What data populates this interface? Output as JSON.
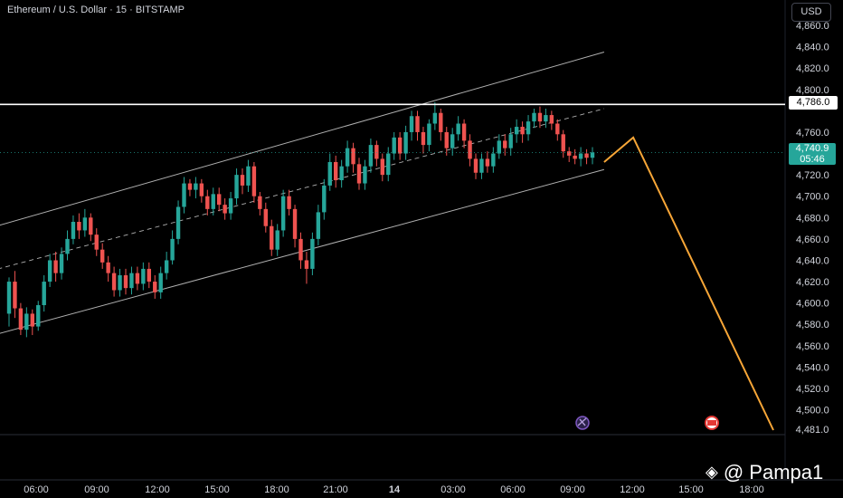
{
  "header": {
    "symbol_title": "Ethereum / U.S. Dollar · 15 · BITSTAMP",
    "currency_button": "USD"
  },
  "colors": {
    "up": "#26a69a",
    "down": "#ef5350",
    "projection": "#f7a637",
    "channel": "#cfcfcf",
    "resistance": "#ffffff",
    "current_price_tag": "#26a69a"
  },
  "chart_data": {
    "type": "candlestick",
    "price_axis_labels": [
      "4,860.0",
      "4,840.0",
      "4,820.0",
      "4,800.0",
      "4,760.0",
      "4,720.0",
      "4,700.0",
      "4,680.0",
      "4,660.0",
      "4,640.0",
      "4,620.0",
      "4,600.0",
      "4,580.0",
      "4,560.0",
      "4,540.0",
      "4,520.0",
      "4,500.0"
    ],
    "time_axis_labels": [
      "06:00",
      "09:00",
      "12:00",
      "15:00",
      "18:00",
      "21:00",
      "14",
      "03:00",
      "06:00",
      "09:00",
      "12:00",
      "15:00",
      "18:00"
    ],
    "resistance_level": {
      "value": 4786.0,
      "label": "4,786.0"
    },
    "current_price": {
      "value": 4740.9,
      "label": "4,740.9",
      "countdown": "05:46"
    },
    "bottom_level": {
      "value": 4481.0,
      "label": "4,481.0"
    },
    "ylim": [
      4481,
      4866
    ],
    "channel": {
      "upper": [
        {
          "t": -6,
          "p": 4666
        },
        {
          "t": 102,
          "p": 4835
        }
      ],
      "middle": [
        {
          "t": -6,
          "p": 4626
        },
        {
          "t": 102,
          "p": 4782
        }
      ],
      "lower": [
        {
          "t": -6,
          "p": 4565
        },
        {
          "t": 102,
          "p": 4725
        }
      ]
    },
    "projection": [
      {
        "t": 102,
        "p": 4732
      },
      {
        "t": 107,
        "p": 4755
      },
      {
        "t": 131,
        "p": 4481
      }
    ],
    "candles": [
      [
        4590,
        4620,
        4578,
        4624
      ],
      [
        4620,
        4595,
        4586,
        4630
      ],
      [
        4595,
        4575,
        4570,
        4600
      ],
      [
        4575,
        4590,
        4568,
        4596
      ],
      [
        4590,
        4578,
        4570,
        4594
      ],
      [
        4578,
        4598,
        4574,
        4602
      ],
      [
        4598,
        4620,
        4592,
        4626
      ],
      [
        4620,
        4640,
        4615,
        4646
      ],
      [
        4640,
        4628,
        4620,
        4648
      ],
      [
        4628,
        4646,
        4622,
        4652
      ],
      [
        4646,
        4660,
        4640,
        4668
      ],
      [
        4660,
        4676,
        4655,
        4682
      ],
      [
        4676,
        4668,
        4660,
        4684
      ],
      [
        4668,
        4680,
        4662,
        4688
      ],
      [
        4680,
        4664,
        4658,
        4684
      ],
      [
        4664,
        4650,
        4644,
        4670
      ],
      [
        4650,
        4638,
        4632,
        4656
      ],
      [
        4638,
        4628,
        4620,
        4644
      ],
      [
        4628,
        4612,
        4606,
        4634
      ],
      [
        4612,
        4626,
        4606,
        4632
      ],
      [
        4626,
        4614,
        4608,
        4632
      ],
      [
        4614,
        4628,
        4608,
        4634
      ],
      [
        4628,
        4618,
        4612,
        4634
      ],
      [
        4618,
        4632,
        4612,
        4638
      ],
      [
        4632,
        4620,
        4614,
        4638
      ],
      [
        4620,
        4610,
        4604,
        4626
      ],
      [
        4610,
        4628,
        4604,
        4634
      ],
      [
        4628,
        4640,
        4622,
        4648
      ],
      [
        4640,
        4660,
        4636,
        4668
      ],
      [
        4660,
        4690,
        4655,
        4696
      ],
      [
        4690,
        4712,
        4684,
        4718
      ],
      [
        4712,
        4706,
        4700,
        4716
      ],
      [
        4706,
        4712,
        4698,
        4718
      ],
      [
        4712,
        4700,
        4694,
        4716
      ],
      [
        4700,
        4688,
        4682,
        4706
      ],
      [
        4688,
        4702,
        4682,
        4708
      ],
      [
        4702,
        4692,
        4686,
        4708
      ],
      [
        4692,
        4684,
        4678,
        4698
      ],
      [
        4684,
        4698,
        4678,
        4704
      ],
      [
        4698,
        4720,
        4692,
        4726
      ],
      [
        4720,
        4710,
        4702,
        4726
      ],
      [
        4710,
        4728,
        4704,
        4734
      ],
      [
        4728,
        4700,
        4694,
        4732
      ],
      [
        4700,
        4688,
        4682,
        4704
      ],
      [
        4688,
        4672,
        4666,
        4694
      ],
      [
        4672,
        4650,
        4644,
        4678
      ],
      [
        4650,
        4668,
        4644,
        4674
      ],
      [
        4668,
        4700,
        4662,
        4706
      ],
      [
        4700,
        4688,
        4682,
        4706
      ],
      [
        4688,
        4660,
        4652,
        4692
      ],
      [
        4660,
        4640,
        4632,
        4666
      ],
      [
        4640,
        4632,
        4618,
        4648
      ],
      [
        4632,
        4660,
        4626,
        4666
      ],
      [
        4660,
        4685,
        4654,
        4692
      ],
      [
        4685,
        4710,
        4678,
        4716
      ],
      [
        4710,
        4732,
        4705,
        4740
      ],
      [
        4732,
        4715,
        4708,
        4738
      ],
      [
        4715,
        4728,
        4708,
        4734
      ],
      [
        4728,
        4745,
        4722,
        4752
      ],
      [
        4745,
        4730,
        4722,
        4750
      ],
      [
        4730,
        4712,
        4706,
        4736
      ],
      [
        4712,
        4728,
        4706,
        4734
      ],
      [
        4728,
        4748,
        4722,
        4754
      ],
      [
        4748,
        4735,
        4728,
        4752
      ],
      [
        4735,
        4720,
        4714,
        4740
      ],
      [
        4720,
        4740,
        4714,
        4746
      ],
      [
        4740,
        4755,
        4734,
        4760
      ],
      [
        4755,
        4740,
        4734,
        4760
      ],
      [
        4740,
        4760,
        4734,
        4766
      ],
      [
        4760,
        4775,
        4752,
        4780
      ],
      [
        4775,
        4760,
        4752,
        4780
      ],
      [
        4760,
        4748,
        4740,
        4765
      ],
      [
        4748,
        4768,
        4742,
        4772
      ],
      [
        4768,
        4778,
        4762,
        4788
      ],
      [
        4778,
        4760,
        4752,
        4782
      ],
      [
        4760,
        4745,
        4738,
        4765
      ],
      [
        4745,
        4758,
        4738,
        4764
      ],
      [
        4758,
        4768,
        4752,
        4775
      ],
      [
        4768,
        4752,
        4745,
        4772
      ],
      [
        4752,
        4735,
        4728,
        4758
      ],
      [
        4735,
        4722,
        4716,
        4740
      ],
      [
        4722,
        4735,
        4716,
        4740
      ],
      [
        4735,
        4728,
        4722,
        4742
      ],
      [
        4728,
        4740,
        4722,
        4746
      ],
      [
        4740,
        4752,
        4735,
        4758
      ],
      [
        4752,
        4745,
        4738,
        4758
      ],
      [
        4745,
        4758,
        4738,
        4764
      ],
      [
        4758,
        4765,
        4750,
        4772
      ],
      [
        4765,
        4758,
        4750,
        4770
      ],
      [
        4758,
        4770,
        4752,
        4776
      ],
      [
        4770,
        4778,
        4764,
        4782
      ],
      [
        4778,
        4770,
        4764,
        4784
      ],
      [
        4770,
        4776,
        4764,
        4782
      ],
      [
        4776,
        4768,
        4762,
        4780
      ],
      [
        4768,
        4758,
        4752,
        4772
      ],
      [
        4758,
        4742,
        4736,
        4762
      ],
      [
        4742,
        4738,
        4732,
        4746
      ],
      [
        4738,
        4735,
        4730,
        4744
      ],
      [
        4735,
        4740,
        4728,
        4746
      ],
      [
        4740,
        4736,
        4730,
        4744
      ],
      [
        4736,
        4741,
        4730,
        4746
      ]
    ]
  },
  "watermark": {
    "text": "@ Pampa1"
  }
}
